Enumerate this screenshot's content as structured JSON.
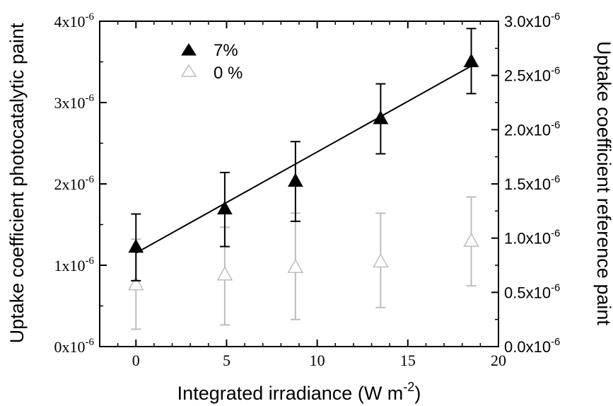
{
  "chart_data": {
    "type": "scatter",
    "xlabel": "Integrated irradiance (W m",
    "xlabel_sup": "-2",
    "xlabel_close": ")",
    "ylabel_left": "Uptake coefficient photocatalytic paint",
    "ylabel_right": "Uptake coefficient reference paint",
    "xlim": [
      -2,
      20
    ],
    "ylim_left": [
      0,
      4e-06
    ],
    "ylim_right": [
      0,
      3e-06
    ],
    "x_ticks": [
      0,
      5,
      10,
      15,
      20
    ],
    "x_tick_labels": [
      "0",
      "5",
      "10",
      "15",
      "20"
    ],
    "y_left_ticks": [
      0,
      1e-06,
      2e-06,
      3e-06,
      4e-06
    ],
    "y_left_tick_labels": [
      {
        "base": "0x10",
        "exp": "-6"
      },
      {
        "base": "1x10",
        "exp": "-6"
      },
      {
        "base": "2x10",
        "exp": "-6"
      },
      {
        "base": "3x10",
        "exp": "-6"
      },
      {
        "base": "4x10",
        "exp": "-6"
      }
    ],
    "y_right_ticks": [
      0,
      5e-07,
      1e-06,
      1.5e-06,
      2e-06,
      2.5e-06,
      3e-06
    ],
    "y_right_tick_labels": [
      {
        "base": "0.0x10",
        "exp": "-6"
      },
      {
        "base": "0.5x10",
        "exp": "-6"
      },
      {
        "base": "1.0x10",
        "exp": "-6"
      },
      {
        "base": "1.5x10",
        "exp": "-6"
      },
      {
        "base": "2.0x10",
        "exp": "-6"
      },
      {
        "base": "2.5x10",
        "exp": "-6"
      },
      {
        "base": "3.0x10",
        "exp": "-6"
      }
    ],
    "series": [
      {
        "name": "7%",
        "axis": "left",
        "marker": "filled-triangle",
        "color": "#000000",
        "points": [
          {
            "x": 0,
            "y": 1.22e-06,
            "err_low": 8.1e-07,
            "err_high": 1.63e-06
          },
          {
            "x": 4.9,
            "y": 1.69e-06,
            "err_low": 1.23e-06,
            "err_high": 2.14e-06
          },
          {
            "x": 8.8,
            "y": 2.03e-06,
            "err_low": 1.54e-06,
            "err_high": 2.52e-06
          },
          {
            "x": 13.5,
            "y": 2.8e-06,
            "err_low": 2.37e-06,
            "err_high": 3.23e-06
          },
          {
            "x": 18.5,
            "y": 3.5e-06,
            "err_low": 3.11e-06,
            "err_high": 3.91e-06
          }
        ]
      },
      {
        "name": "0 %",
        "axis": "right",
        "marker": "open-triangle",
        "color": "#bdbdbd",
        "points": [
          {
            "x": 0,
            "y": 5.7e-07,
            "err_low": 1.6e-07,
            "err_high": 9.9e-07
          },
          {
            "x": 4.9,
            "y": 6.6e-07,
            "err_low": 2e-07,
            "err_high": 1.1e-06
          },
          {
            "x": 8.8,
            "y": 7.3e-07,
            "err_low": 2.5e-07,
            "err_high": 1.23e-06
          },
          {
            "x": 13.5,
            "y": 7.8e-07,
            "err_low": 3.6e-07,
            "err_high": 1.23e-06
          },
          {
            "x": 18.5,
            "y": 9.7e-07,
            "err_low": 5.6e-07,
            "err_high": 1.38e-06
          }
        ]
      }
    ],
    "fit_line": {
      "axis": "left",
      "x": [
        0,
        18.5
      ],
      "y": [
        1.15e-06,
        3.45e-06
      ],
      "color": "#000000"
    },
    "grid": false,
    "legend_position": "top-left"
  }
}
